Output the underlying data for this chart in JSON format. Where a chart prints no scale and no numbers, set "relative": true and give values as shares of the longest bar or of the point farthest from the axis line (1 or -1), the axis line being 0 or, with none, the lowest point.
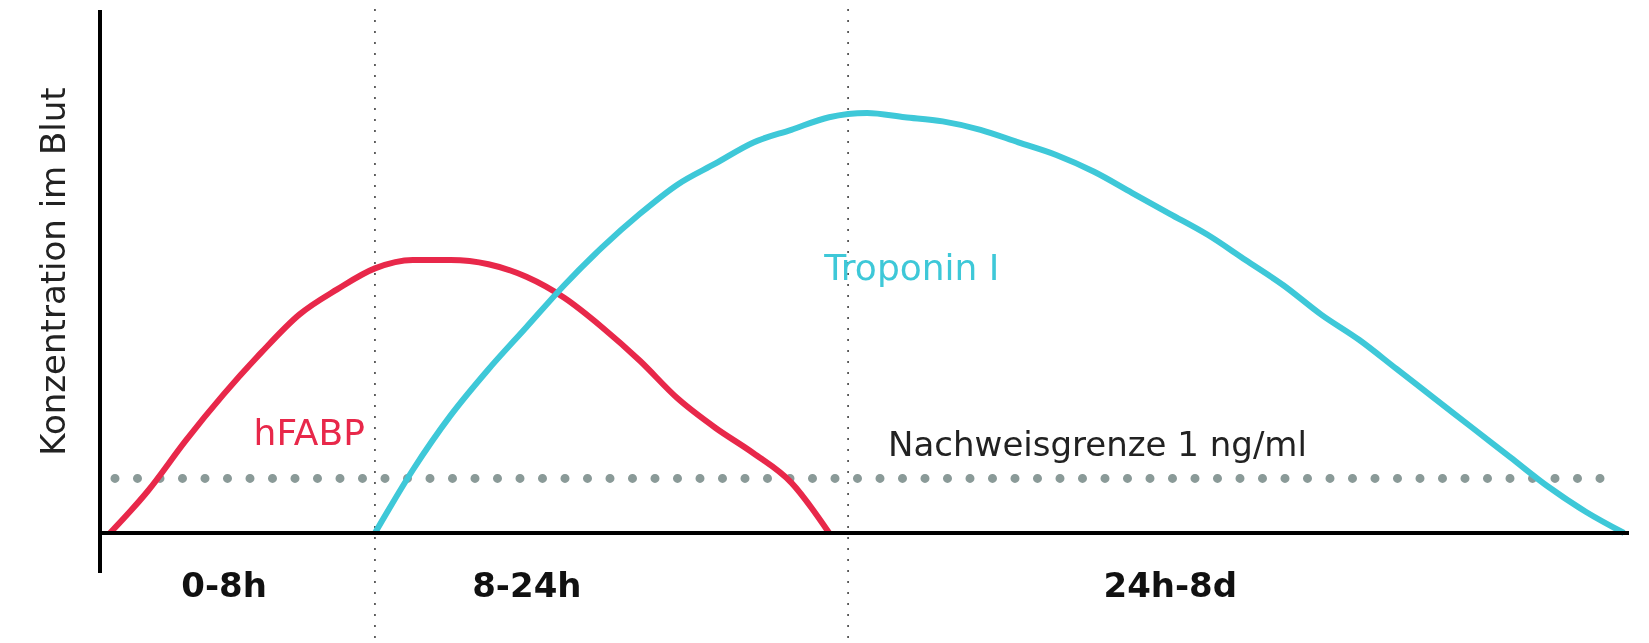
{
  "chart_data": {
    "type": "line",
    "relative": true,
    "ylabel": "Konzentration im Blut",
    "categories": [
      null,
      null,
      null,
      "0-8h",
      null,
      null,
      null,
      null,
      null,
      null,
      null,
      "8-24h",
      null,
      null,
      null,
      null,
      null,
      null,
      null,
      null,
      null,
      null,
      null,
      null,
      null,
      null,
      null,
      null,
      "24h-8d",
      null,
      null,
      null,
      null,
      null,
      null,
      null,
      null,
      null,
      null,
      null,
      null
    ],
    "tick_labels": "x",
    "legend": false,
    "grid": "x",
    "marker": "none",
    "line_style": "solid",
    "series": [
      {
        "name": "hFABP",
        "color": "#e8284a",
        "values": [
          0,
          0.1,
          0.22,
          0.33,
          0.43,
          0.52,
          0.58,
          0.63,
          0.65,
          0.65,
          0.64,
          0.61,
          0.56,
          0.49,
          0.41,
          0.32,
          0.25,
          0.19,
          0.12,
          0,
          null,
          null,
          null,
          null,
          null,
          null,
          null,
          null,
          null,
          null,
          null,
          null,
          null,
          null,
          null,
          null,
          null,
          null,
          null,
          null,
          null
        ]
      },
      {
        "name": "Troponin I",
        "color": "#3ec8d8",
        "values": [
          null,
          null,
          null,
          null,
          null,
          null,
          null,
          0,
          0.15,
          0.28,
          0.39,
          0.49,
          0.59,
          0.68,
          0.76,
          0.83,
          0.88,
          0.93,
          0.96,
          0.99,
          1,
          0.99,
          0.98,
          0.96,
          0.93,
          0.9,
          0.86,
          0.81,
          0.76,
          0.71,
          0.65,
          0.59,
          0.52,
          0.46,
          0.39,
          0.32,
          0.25,
          0.18,
          0.11,
          0.05,
          0
        ]
      }
    ],
    "ref_lines": [
      {
        "axis": "y",
        "value": 0.13,
        "label": "Nachweisgrenze 1 ng/ml",
        "color": "#8a9a98",
        "line_style": "dotted"
      }
    ]
  }
}
